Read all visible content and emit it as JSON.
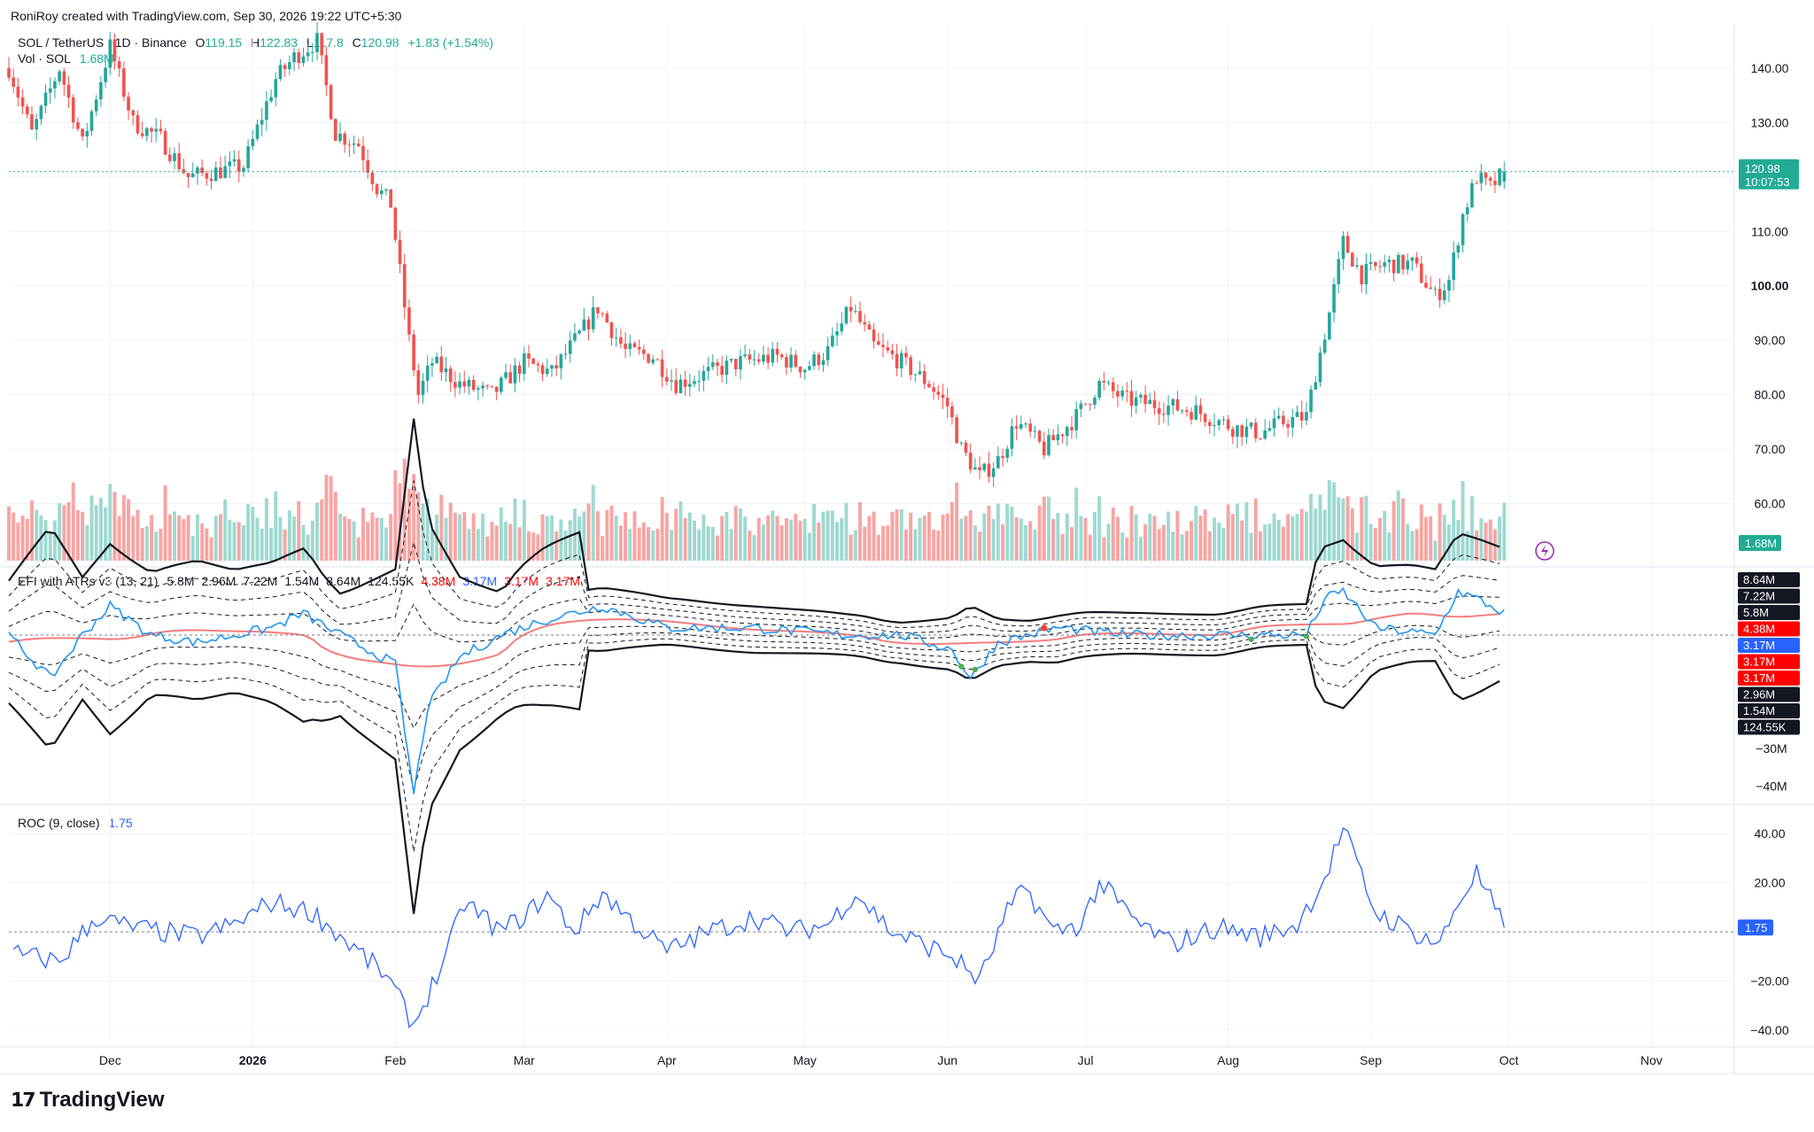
{
  "header": {
    "credit": "RoniRoy created with TradingView.com, Sep 30, 2026 19:22 UTC+5:30"
  },
  "price_pane": {
    "symbol": "SOL / TetherUS · 1D · Binance",
    "open_label": "O",
    "open": "119.15",
    "high_label": "H",
    "high": "122.83",
    "low_label": "L",
    "low": "117.8",
    "close_label": "C",
    "close": "120.98",
    "change": "+1.83 (+1.54%)",
    "volume_label": "Vol · SOL",
    "volume": "1.68M",
    "last_price": "120.98",
    "countdown": "10:07:53",
    "volume_tag": "1.68M"
  },
  "efi_pane": {
    "title": "EFI with ATRs v3 (13, 21)",
    "values": [
      {
        "text": "5.8M",
        "color": "#131722"
      },
      {
        "text": "2.96M",
        "color": "#131722"
      },
      {
        "text": "7.22M",
        "color": "#131722"
      },
      {
        "text": "1.54M",
        "color": "#131722"
      },
      {
        "text": "8.64M",
        "color": "#131722"
      },
      {
        "text": "124.55K",
        "color": "#131722"
      },
      {
        "text": "4.38M",
        "color": "#ff0000"
      },
      {
        "text": "3.17M",
        "color": "#2962ff"
      },
      {
        "text": "3.17M",
        "color": "#ff0000"
      },
      {
        "text": "3.17M",
        "color": "#ff0000"
      }
    ],
    "axis_tags": [
      {
        "text": "8.64M",
        "bg": "#131722"
      },
      {
        "text": "7.22M",
        "bg": "#131722"
      },
      {
        "text": "5.8M",
        "bg": "#131722"
      },
      {
        "text": "4.38M",
        "bg": "#ff0000"
      },
      {
        "text": "3.17M",
        "bg": "#2962ff"
      },
      {
        "text": "3.17M",
        "bg": "#ff0000"
      },
      {
        "text": "3.17M",
        "bg": "#ff0000"
      },
      {
        "text": "2.96M",
        "bg": "#131722"
      },
      {
        "text": "1.54M",
        "bg": "#131722"
      },
      {
        "text": "124.55K",
        "bg": "#131722"
      }
    ],
    "ticks": [
      "−30M",
      "−40M"
    ]
  },
  "roc_pane": {
    "title": "ROC (9, close)",
    "value": "1.75",
    "ticks": [
      "40.00",
      "20.00",
      "−20.00",
      "−40.00"
    ]
  },
  "brand": {
    "name": "TradingView"
  },
  "chart_data": {
    "type": "candlestick",
    "title": "SOL / TetherUS · 1D · Binance",
    "y_ticks": [
      "140.00",
      "130.00",
      "120.00",
      "110.00",
      "100.00",
      "90.00",
      "80.00",
      "70.00",
      "60.00"
    ],
    "ylim": [
      50,
      146
    ],
    "x_ticks": [
      "Dec",
      "2026",
      "Feb",
      "Mar",
      "Apr",
      "May",
      "Jun",
      "Jul",
      "Aug",
      "Sep",
      "Oct",
      "Nov"
    ],
    "x_range": [
      "2025-11-09",
      "2026-11-19"
    ],
    "colors": {
      "up": "#26a69a",
      "down": "#ef5350",
      "vol_up": "#9fd9d1",
      "vol_down": "#f7a5a3",
      "efi": "#2196f3",
      "efi_ma": "#f77c7c",
      "roc": "#2962ff"
    },
    "price_path": [
      [
        "2025-11-09",
        140
      ],
      [
        "2025-11-14",
        128
      ],
      [
        "2025-11-20",
        140
      ],
      [
        "2025-11-25",
        126
      ],
      [
        "2025-12-01",
        144
      ],
      [
        "2025-12-06",
        130
      ],
      [
        "2025-12-12",
        127
      ],
      [
        "2025-12-18",
        120
      ],
      [
        "2025-12-24",
        121
      ],
      [
        "2025-12-30",
        122
      ],
      [
        "2026-01-06",
        138
      ],
      [
        "2026-01-10",
        142
      ],
      [
        "2026-01-15",
        145
      ],
      [
        "2026-01-19",
        128
      ],
      [
        "2026-01-24",
        126
      ],
      [
        "2026-01-28",
        118
      ],
      [
        "2026-01-31",
        115
      ],
      [
        "2026-02-04",
        90
      ],
      [
        "2026-02-06",
        80
      ],
      [
        "2026-02-09",
        86
      ],
      [
        "2026-02-15",
        82
      ],
      [
        "2026-02-22",
        80
      ],
      [
        "2026-03-01",
        86
      ],
      [
        "2026-03-07",
        84
      ],
      [
        "2026-03-13",
        91
      ],
      [
        "2026-03-17",
        96
      ],
      [
        "2026-03-23",
        88
      ],
      [
        "2026-03-29",
        87
      ],
      [
        "2026-04-03",
        82
      ],
      [
        "2026-04-10",
        84
      ],
      [
        "2026-04-17",
        86
      ],
      [
        "2026-04-25",
        87
      ],
      [
        "2026-05-01",
        85
      ],
      [
        "2026-05-06",
        88
      ],
      [
        "2026-05-11",
        96
      ],
      [
        "2026-05-16",
        89
      ],
      [
        "2026-05-22",
        86
      ],
      [
        "2026-05-28",
        82
      ],
      [
        "2026-06-01",
        78
      ],
      [
        "2026-06-04",
        70
      ],
      [
        "2026-06-08",
        65
      ],
      [
        "2026-06-12",
        68
      ],
      [
        "2026-06-16",
        75
      ],
      [
        "2026-06-22",
        70
      ],
      [
        "2026-06-29",
        76
      ],
      [
        "2026-07-04",
        82
      ],
      [
        "2026-07-10",
        79
      ],
      [
        "2026-07-18",
        78
      ],
      [
        "2026-07-25",
        77
      ],
      [
        "2026-08-02",
        74
      ],
      [
        "2026-08-08",
        73
      ],
      [
        "2026-08-13",
        75
      ],
      [
        "2026-08-18",
        76
      ],
      [
        "2026-08-20",
        84
      ],
      [
        "2026-08-23",
        95
      ],
      [
        "2026-08-26",
        108
      ],
      [
        "2026-08-30",
        102
      ],
      [
        "2026-09-04",
        104
      ],
      [
        "2026-09-10",
        104
      ],
      [
        "2026-09-15",
        98
      ],
      [
        "2026-09-18",
        101
      ],
      [
        "2026-09-21",
        113
      ],
      [
        "2026-09-24",
        120
      ],
      [
        "2026-09-27",
        118
      ],
      [
        "2026-09-30",
        120.98
      ]
    ],
    "ohlc_last": {
      "open": 119.15,
      "high": 122.83,
      "low": 117.8,
      "close": 120.98
    },
    "volume_last": "1.68M",
    "roc_series": [
      [
        "2025-11-10",
        -9
      ],
      [
        "2025-11-20",
        -12
      ],
      [
        "2025-11-28",
        6
      ],
      [
        "2025-12-05",
        2
      ],
      [
        "2025-12-12",
        0
      ],
      [
        "2025-12-20",
        -2
      ],
      [
        "2025-12-28",
        3
      ],
      [
        "2026-01-05",
        12
      ],
      [
        "2026-01-14",
        8
      ],
      [
        "2026-01-22",
        -5
      ],
      [
        "2026-01-30",
        -18
      ],
      [
        "2026-02-05",
        -38
      ],
      [
        "2026-02-12",
        -10
      ],
      [
        "2026-02-16",
        12
      ],
      [
        "2026-02-24",
        0
      ],
      [
        "2026-03-02",
        8
      ],
      [
        "2026-03-06",
        15
      ],
      [
        "2026-03-12",
        0
      ],
      [
        "2026-03-18",
        16
      ],
      [
        "2026-03-24",
        5
      ],
      [
        "2026-04-01",
        -8
      ],
      [
        "2026-04-10",
        0
      ],
      [
        "2026-04-20",
        6
      ],
      [
        "2026-04-28",
        0
      ],
      [
        "2026-05-06",
        3
      ],
      [
        "2026-05-12",
        16
      ],
      [
        "2026-05-20",
        0
      ],
      [
        "2026-05-28",
        -6
      ],
      [
        "2026-06-02",
        -10
      ],
      [
        "2026-06-08",
        -20
      ],
      [
        "2026-06-14",
        8
      ],
      [
        "2026-06-18",
        18
      ],
      [
        "2026-06-24",
        0
      ],
      [
        "2026-06-30",
        3
      ],
      [
        "2026-07-04",
        20
      ],
      [
        "2026-07-12",
        4
      ],
      [
        "2026-07-20",
        -5
      ],
      [
        "2026-07-30",
        2
      ],
      [
        "2026-08-08",
        -2
      ],
      [
        "2026-08-16",
        3
      ],
      [
        "2026-08-22",
        22
      ],
      [
        "2026-08-26",
        42
      ],
      [
        "2026-09-02",
        8
      ],
      [
        "2026-09-10",
        0
      ],
      [
        "2026-09-16",
        -5
      ],
      [
        "2026-09-20",
        12
      ],
      [
        "2026-09-24",
        24
      ],
      [
        "2026-09-30",
        1.75
      ]
    ],
    "efi_series": [
      [
        "2025-11-09",
        0
      ],
      [
        "2025-11-18",
        -6
      ],
      [
        "2025-11-25",
        0
      ],
      [
        "2025-12-01",
        4
      ],
      [
        "2025-12-10",
        0
      ],
      [
        "2025-12-20",
        -1
      ],
      [
        "2026-01-05",
        1
      ],
      [
        "2026-01-12",
        3
      ],
      [
        "2026-01-20",
        0
      ],
      [
        "2026-01-26",
        -2
      ],
      [
        "2026-02-01",
        -4
      ],
      [
        "2026-02-05",
        -22
      ],
      [
        "2026-02-08",
        -10
      ],
      [
        "2026-02-15",
        -3
      ],
      [
        "2026-02-24",
        0
      ],
      [
        "2026-03-05",
        2
      ],
      [
        "2026-03-18",
        4
      ],
      [
        "2026-04-01",
        1
      ],
      [
        "2026-04-20",
        1
      ],
      [
        "2026-05-10",
        0
      ],
      [
        "2026-05-22",
        0
      ],
      [
        "2026-06-02",
        -2
      ],
      [
        "2026-06-06",
        -6
      ],
      [
        "2026-06-12",
        -1
      ],
      [
        "2026-06-25",
        1
      ],
      [
        "2026-07-10",
        0
      ],
      [
        "2026-08-18",
        0
      ],
      [
        "2026-08-22",
        5
      ],
      [
        "2026-08-26",
        6
      ],
      [
        "2026-09-02",
        1
      ],
      [
        "2026-09-15",
        0
      ],
      [
        "2026-09-20",
        6
      ],
      [
        "2026-09-24",
        5
      ],
      [
        "2026-09-30",
        3
      ]
    ],
    "grid": true
  }
}
